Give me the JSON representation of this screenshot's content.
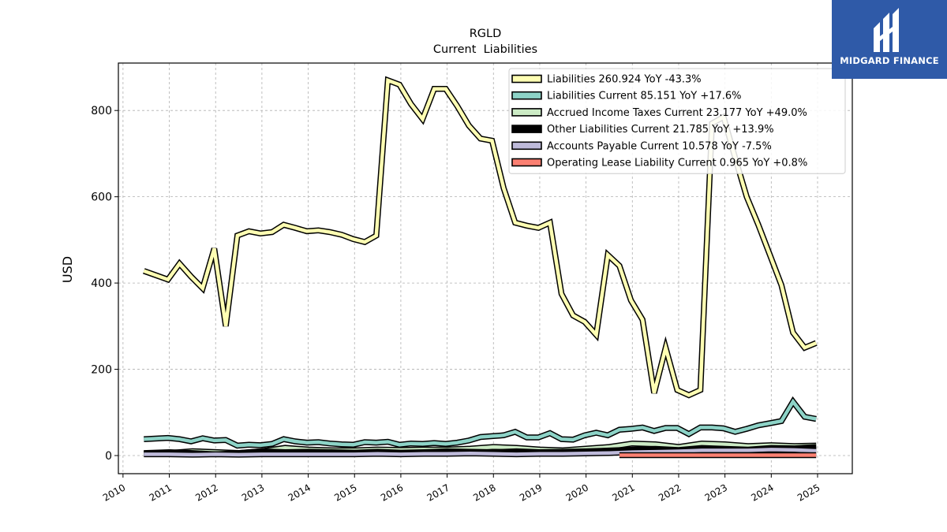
{
  "header": {
    "ticker": "RGLD",
    "subtitle": "Current  Liabilities"
  },
  "brand": {
    "name": "MIDGARD FINANCE",
    "background": "#2f5aa8"
  },
  "chart_data": {
    "type": "line",
    "title": "RGLD",
    "subtitle": "Current  Liabilities",
    "xlabel": "",
    "ylabel": "USD",
    "xlim": [
      2009.9,
      2025.75
    ],
    "ylim": [
      -42,
      910
    ],
    "x_ticks": [
      "2010",
      "2011",
      "2012",
      "2013",
      "2014",
      "2015",
      "2016",
      "2017",
      "2018",
      "2019",
      "2020",
      "2021",
      "2022",
      "2023",
      "2024",
      "2025"
    ],
    "y_ticks": [
      0,
      200,
      400,
      600,
      800
    ],
    "grid": true,
    "legend_position": "top-right",
    "series": [
      {
        "name": "Liabilities",
        "legend": "Liabilities  260.924 YoY -43.3%",
        "color": "#ffffb3",
        "x": [
          2010.45,
          2010.97,
          2011.22,
          2011.47,
          2011.72,
          2011.97,
          2012.22,
          2012.47,
          2012.72,
          2012.97,
          2013.22,
          2013.47,
          2013.72,
          2013.97,
          2014.22,
          2014.47,
          2014.72,
          2014.97,
          2015.22,
          2015.47,
          2015.72,
          2015.97,
          2016.22,
          2016.47,
          2016.72,
          2016.97,
          2017.22,
          2017.47,
          2017.72,
          2017.97,
          2018.22,
          2018.47,
          2018.72,
          2018.97,
          2019.22,
          2019.47,
          2019.72,
          2019.97,
          2020.22,
          2020.47,
          2020.72,
          2020.97,
          2021.22,
          2021.47,
          2021.72,
          2021.97,
          2022.22,
          2022.47,
          2022.72,
          2022.97,
          2023.22,
          2023.47,
          2023.72,
          2023.97,
          2024.22,
          2024.47,
          2024.72,
          2024.97
        ],
        "values": [
          428,
          408,
          445,
          415,
          388,
          480,
          300,
          510,
          520,
          515,
          518,
          535,
          528,
          520,
          522,
          518,
          512,
          502,
          495,
          510,
          870,
          860,
          815,
          780,
          850,
          850,
          810,
          765,
          735,
          730,
          620,
          540,
          533,
          528,
          540,
          375,
          325,
          310,
          280,
          465,
          440,
          360,
          315,
          145,
          250,
          152,
          140,
          152,
          770,
          785,
          690,
          600,
          535,
          465,
          395,
          285,
          250,
          261
        ]
      },
      {
        "name": "Liabilities Current",
        "legend": "Liabilities Current  85.151 YoY +17.6%",
        "color": "#8dd3c7",
        "x": [
          2010.45,
          2010.97,
          2011.22,
          2011.47,
          2011.72,
          2011.97,
          2012.22,
          2012.47,
          2012.72,
          2012.97,
          2013.22,
          2013.47,
          2013.72,
          2013.97,
          2014.22,
          2014.47,
          2014.72,
          2014.97,
          2015.22,
          2015.47,
          2015.72,
          2015.97,
          2016.22,
          2016.47,
          2016.72,
          2016.97,
          2017.22,
          2017.47,
          2017.72,
          2017.97,
          2018.22,
          2018.47,
          2018.72,
          2018.97,
          2019.22,
          2019.47,
          2019.72,
          2019.97,
          2020.22,
          2020.47,
          2020.72,
          2020.97,
          2021.22,
          2021.47,
          2021.72,
          2021.97,
          2022.22,
          2022.47,
          2022.72,
          2022.97,
          2023.22,
          2023.47,
          2023.72,
          2023.97,
          2024.22,
          2024.47,
          2024.72,
          2024.97
        ],
        "values": [
          38,
          41,
          38,
          33,
          40,
          35,
          36,
          23,
          25,
          24,
          27,
          38,
          33,
          30,
          31,
          28,
          26,
          25,
          31,
          30,
          32,
          25,
          28,
          27,
          29,
          27,
          30,
          35,
          43,
          45,
          47,
          55,
          42,
          42,
          52,
          38,
          37,
          47,
          53,
          47,
          60,
          62,
          65,
          57,
          64,
          64,
          50,
          65,
          65,
          63,
          55,
          62,
          70,
          75,
          80,
          125,
          90,
          85
        ]
      },
      {
        "name": "Accrued Income Taxes Current",
        "legend": "Accrued Income Taxes Current  23.177 YoY +49.0%",
        "color": "#ccebc5",
        "x": [
          2010.45,
          2011.0,
          2011.5,
          2012.0,
          2012.5,
          2013.0,
          2013.5,
          2014.0,
          2014.5,
          2015.0,
          2015.5,
          2016.0,
          2016.5,
          2017.0,
          2017.5,
          2018.0,
          2018.5,
          2019.0,
          2019.5,
          2020.0,
          2020.5,
          2021.0,
          2021.5,
          2022.0,
          2022.5,
          2023.0,
          2023.5,
          2024.0,
          2024.5,
          2024.97
        ],
        "values": [
          5,
          6,
          10,
          8,
          6,
          10,
          18,
          14,
          12,
          12,
          14,
          13,
          14,
          14,
          16,
          20,
          18,
          14,
          12,
          16,
          20,
          28,
          26,
          20,
          28,
          26,
          22,
          24,
          22,
          23
        ]
      },
      {
        "name": "Other Liabilities Current",
        "legend": "Other Liabilities Current  21.785 YoY +13.9%",
        "color": "#000000",
        "x": [
          2010.45,
          2011.0,
          2011.5,
          2012.0,
          2012.5,
          2013.0,
          2013.5,
          2014.0,
          2014.5,
          2015.0,
          2015.5,
          2016.0,
          2016.5,
          2017.0,
          2017.5,
          2018.0,
          2018.5,
          2019.0,
          2019.5,
          2020.0,
          2020.5,
          2021.0,
          2021.5,
          2022.0,
          2022.5,
          2023.0,
          2023.5,
          2024.0,
          2024.5,
          2024.97
        ],
        "values": [
          8,
          10,
          8,
          5,
          8,
          12,
          10,
          11,
          10,
          9,
          11,
          9,
          10,
          12,
          11,
          10,
          12,
          10,
          11,
          12,
          14,
          16,
          18,
          15,
          20,
          18,
          16,
          20,
          19,
          22
        ]
      },
      {
        "name": "Accounts Payable Current",
        "legend": "Accounts Payable Current  10.578 YoY -7.5%",
        "color": "#bebada",
        "x": [
          2010.45,
          2011.0,
          2011.5,
          2012.0,
          2012.5,
          2013.0,
          2013.5,
          2014.0,
          2014.5,
          2015.0,
          2015.5,
          2016.0,
          2016.5,
          2017.0,
          2017.5,
          2018.0,
          2018.5,
          2019.0,
          2019.5,
          2020.0,
          2020.5,
          2021.0,
          2021.5,
          2022.0,
          2022.5,
          2023.0,
          2023.5,
          2024.0,
          2024.5,
          2024.97
        ],
        "values": [
          3,
          3,
          2,
          3,
          2,
          3,
          3,
          3,
          3,
          3,
          4,
          3,
          4,
          4,
          5,
          4,
          3,
          4,
          4,
          5,
          6,
          8,
          9,
          10,
          12,
          12,
          12,
          14,
          13,
          11
        ]
      },
      {
        "name": "Operating Lease Liability Current",
        "legend": "Operating Lease Liability Current  0.965 YoY +0.8%",
        "color": "#fb8072",
        "x": [
          2020.72,
          2021.0,
          2021.5,
          2022.0,
          2022.5,
          2023.0,
          2023.5,
          2024.0,
          2024.5,
          2024.97
        ],
        "values": [
          1,
          1,
          1,
          1,
          1,
          1,
          1,
          1,
          1,
          1
        ]
      }
    ]
  }
}
